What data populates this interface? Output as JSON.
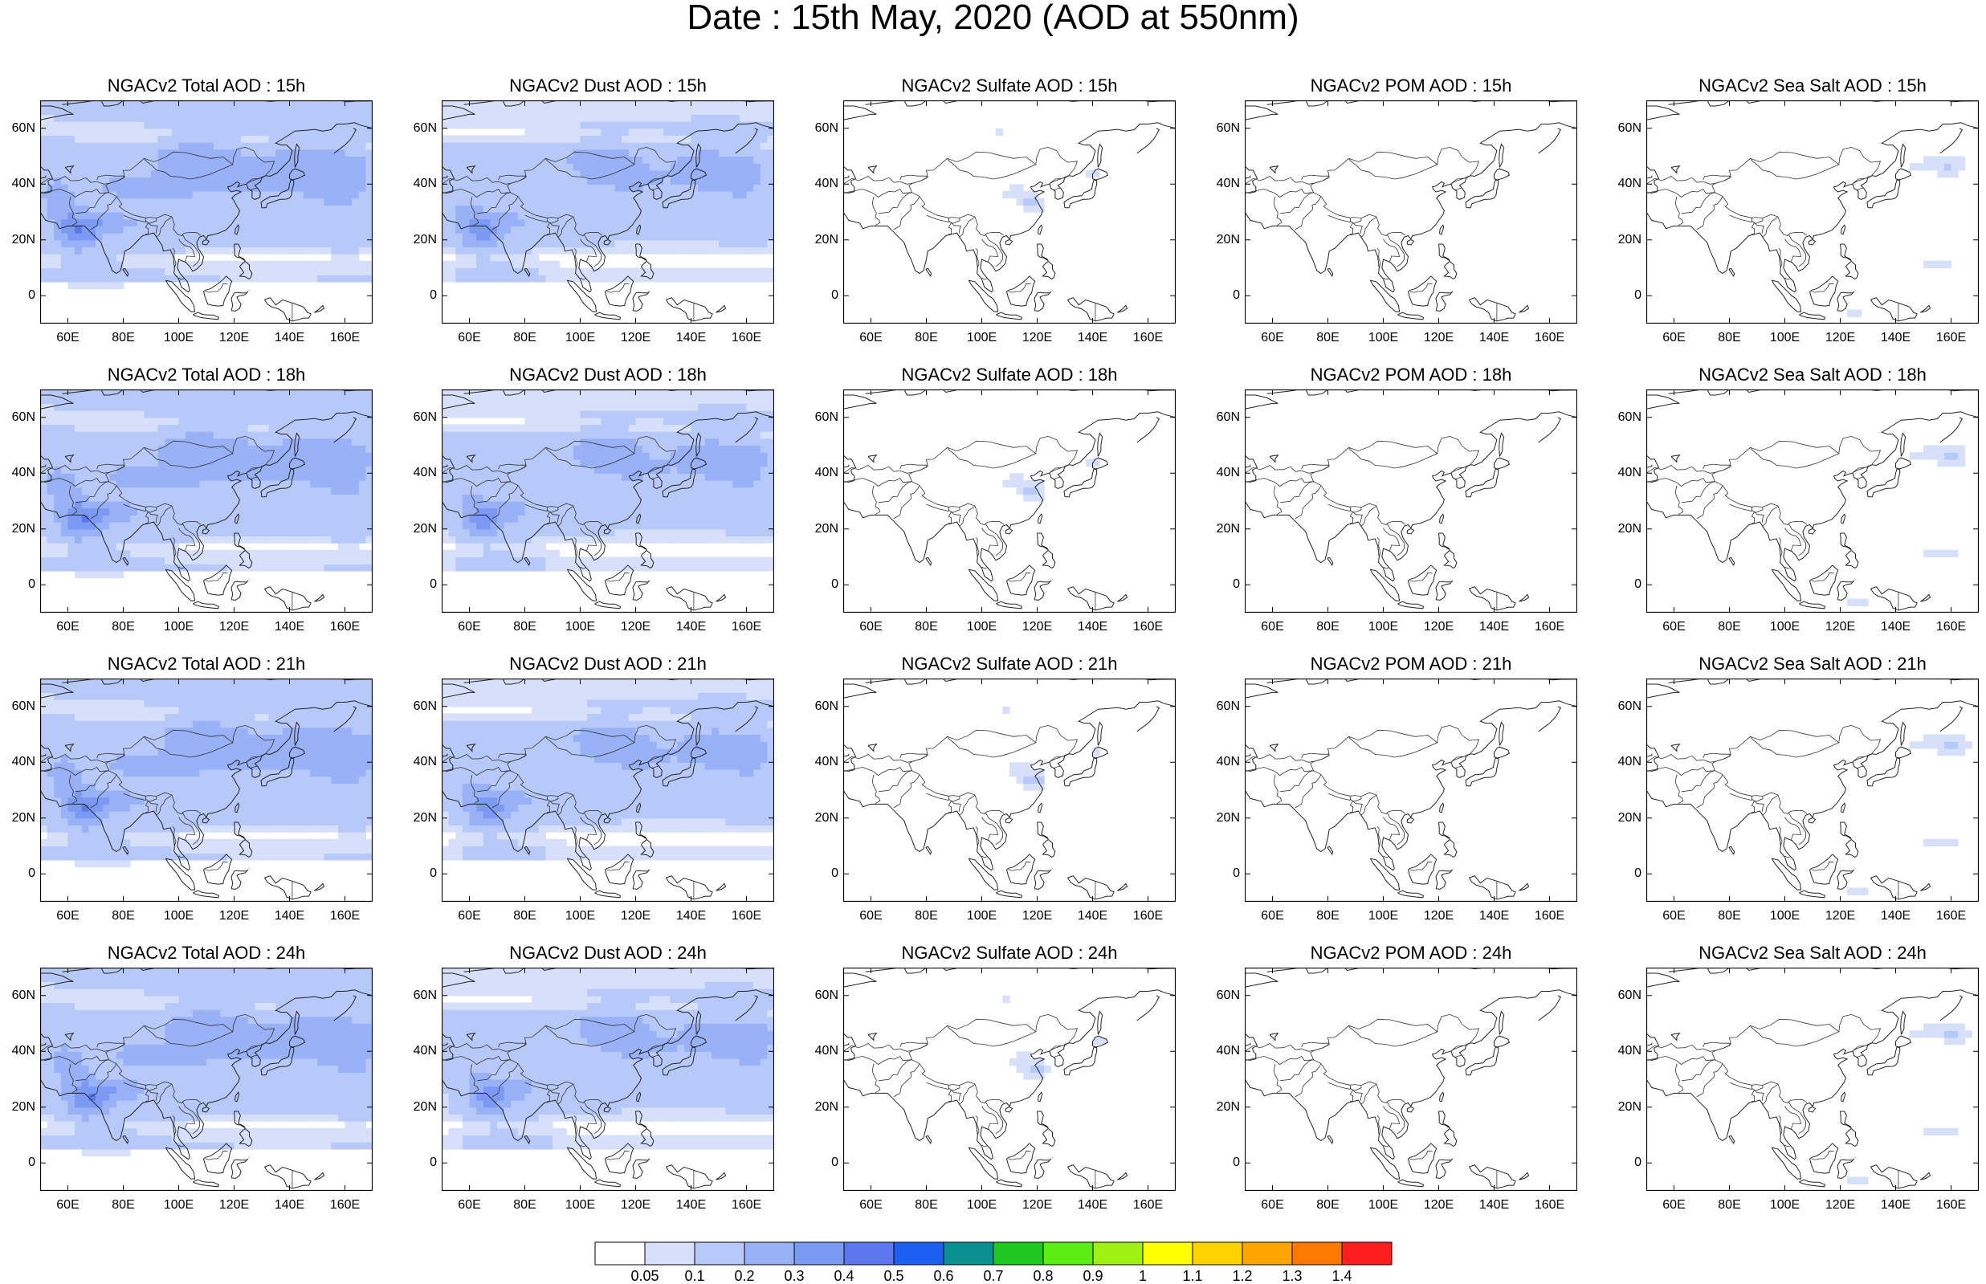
{
  "title": "Date : 15th May, 2020 (AOD at 550nm)",
  "rows": [
    "15h",
    "18h",
    "21h",
    "24h"
  ],
  "columns": [
    {
      "key": "total",
      "type": "total"
    },
    {
      "key": "dust",
      "type": "dust"
    },
    {
      "key": "sulfate",
      "type": "sulfate"
    },
    {
      "key": "pom",
      "type": "pom"
    },
    {
      "key": "seasalt",
      "type": "seasalt"
    }
  ],
  "panel_titles": [
    [
      "NGACv2 Total AOD : 15h",
      "NGACv2 Dust AOD : 15h",
      "NGACv2 Sulfate AOD : 15h",
      "NGACv2 POM AOD : 15h",
      "NGACv2 Sea Salt AOD : 15h"
    ],
    [
      "NGACv2 Total AOD : 18h",
      "NGACv2 Dust AOD : 18h",
      "NGACv2 Sulfate AOD : 18h",
      "NGACv2 POM AOD : 18h",
      "NGACv2 Sea Salt AOD : 18h"
    ],
    [
      "NGACv2 Total AOD : 21h",
      "NGACv2 Dust AOD : 21h",
      "NGACv2 Sulfate AOD : 21h",
      "NGACv2 POM AOD : 21h",
      "NGACv2 Sea Salt AOD : 21h"
    ],
    [
      "NGACv2 Total AOD : 24h",
      "NGACv2 Dust AOD : 24h",
      "NGACv2 Sulfate AOD : 24h",
      "NGACv2 POM AOD : 24h",
      "NGACv2 Sea Salt  AOD : 24h"
    ]
  ],
  "y_ticks": [
    "60N",
    "40N",
    "20N",
    "0"
  ],
  "x_ticks": [
    "60E",
    "80E",
    "100E",
    "120E",
    "140E",
    "160E"
  ],
  "colorbar": {
    "labels": [
      "0.05",
      "0.1",
      "0.2",
      "0.3",
      "0.4",
      "0.5",
      "0.6",
      "0.7",
      "0.8",
      "0.9",
      "1",
      "1.1",
      "1.2",
      "1.3",
      "1.4"
    ],
    "colors": [
      "#ffffff",
      "#d6e0fb",
      "#b7c9f9",
      "#98b1f7",
      "#7c99f3",
      "#5f77ee",
      "#1d5ff0",
      "#0a9090",
      "#1ec81e",
      "#5aee12",
      "#a0f014",
      "#ffff00",
      "#ffd200",
      "#ffa500",
      "#ff7800",
      "#ff1e1e"
    ]
  }
}
